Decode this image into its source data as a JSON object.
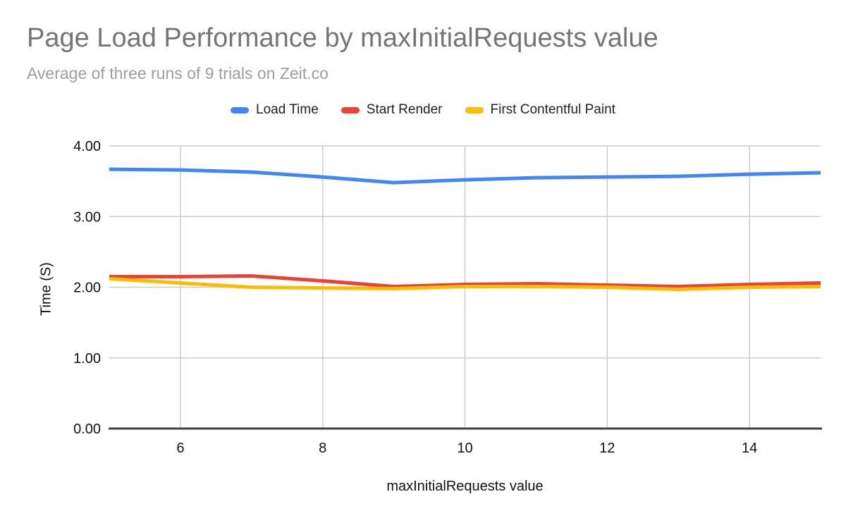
{
  "chart_data": {
    "type": "line",
    "title": "Page Load Performance by maxInitialRequests value",
    "subtitle": "Average of three runs of 9 trials on Zeit.co",
    "xlabel": "maxInitialRequests value",
    "ylabel": "Time (S)",
    "x": [
      5,
      6,
      7,
      8,
      9,
      10,
      11,
      12,
      13,
      14,
      15
    ],
    "series": [
      {
        "name": "Load Time",
        "color": "#4285f4",
        "values": [
          3.67,
          3.66,
          3.63,
          3.56,
          3.48,
          3.52,
          3.55,
          3.56,
          3.57,
          3.6,
          3.62
        ]
      },
      {
        "name": "Start Render",
        "color": "#ea4335",
        "values": [
          2.15,
          2.15,
          2.16,
          2.09,
          2.01,
          2.04,
          2.05,
          2.03,
          2.01,
          2.04,
          2.06
        ]
      },
      {
        "name": "First Contentful Paint",
        "color": "#fbbc04",
        "values": [
          2.12,
          2.06,
          2.0,
          1.99,
          1.98,
          2.01,
          2.01,
          2.0,
          1.97,
          2.0,
          2.01
        ]
      }
    ],
    "xlim": [
      5,
      15
    ],
    "ylim": [
      0,
      4
    ],
    "x_ticks": [
      6,
      8,
      10,
      12,
      14
    ],
    "x_tick_labels": [
      "6",
      "8",
      "10",
      "12",
      "14"
    ],
    "y_ticks": [
      0,
      1,
      2,
      3,
      4
    ],
    "y_tick_labels": [
      "0.00",
      "1.00",
      "2.00",
      "3.00",
      "4.00"
    ],
    "grid": true,
    "legend_position": "top",
    "colors": {
      "gridline": "#cccccc",
      "axis_line": "#424242",
      "title_text": "#757575",
      "subtitle_text": "#9e9e9e",
      "tick_text": "#111111"
    }
  }
}
